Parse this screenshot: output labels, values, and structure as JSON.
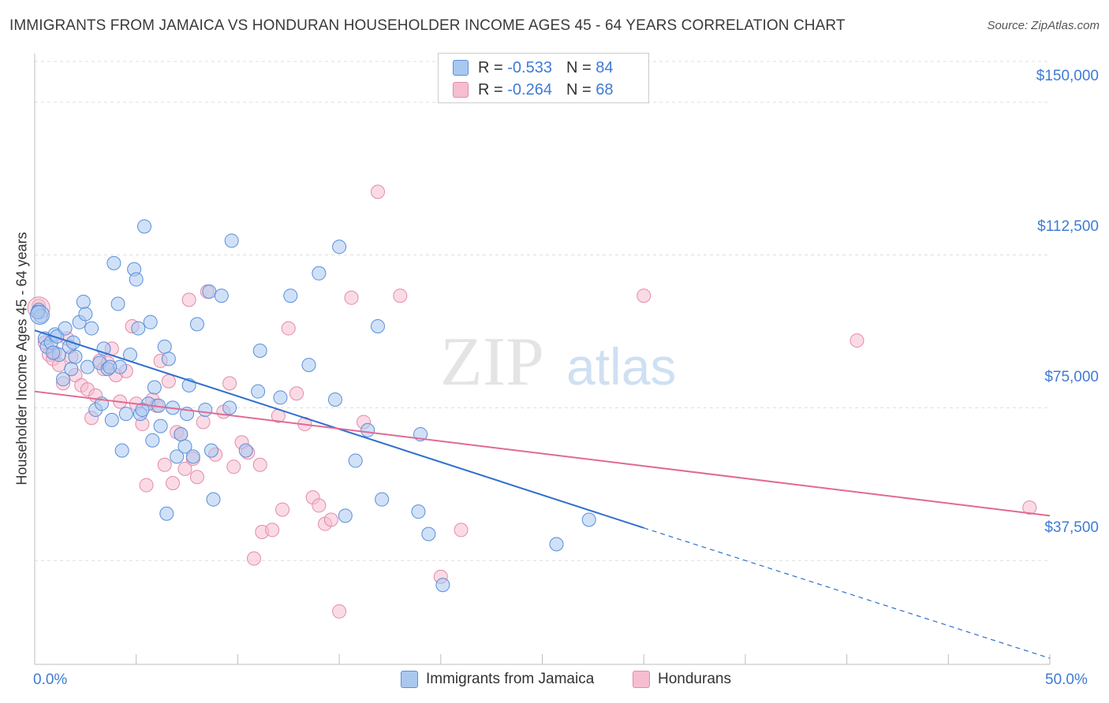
{
  "header": {
    "title": "IMMIGRANTS FROM JAMAICA VS HONDURAN HOUSEHOLDER INCOME AGES 45 - 64 YEARS CORRELATION CHART",
    "source": "Source: ZipAtlas.com"
  },
  "watermark": {
    "part1": "ZIP",
    "part2": "atlas"
  },
  "legend_top": {
    "r_label": "R =",
    "n_label": "N =",
    "rows": [
      {
        "r": "-0.533",
        "n": "84"
      },
      {
        "r": "-0.264",
        "n": "68"
      }
    ]
  },
  "colors": {
    "series1_fill": "#a9c8f0",
    "series1_stroke": "#5a8fd8",
    "series1_line": "#2f6fce",
    "series2_fill": "#f6bdd0",
    "series2_stroke": "#e48aaa",
    "series2_line": "#e06a94",
    "tick_text": "#3e7bd6",
    "grid": "#dedede"
  },
  "chart_data": {
    "type": "scatter",
    "title": "IMMIGRANTS FROM JAMAICA VS HONDURAN HOUSEHOLDER INCOME AGES 45 - 64 YEARS CORRELATION CHART",
    "xlabel": "",
    "ylabel": "Householder Income Ages 45 - 64 years",
    "xlim": [
      0,
      50
    ],
    "ylim": [
      12000,
      160000
    ],
    "x_tick_labels": [
      "0.0%",
      "50.0%"
    ],
    "y_ticks": [
      37500,
      75000,
      112500,
      150000
    ],
    "y_tick_labels": [
      "$37,500",
      "$75,000",
      "$112,500",
      "$150,000"
    ],
    "grid": true,
    "legend_placement": "bottom-center",
    "series": [
      {
        "name": "Immigrants from Jamaica",
        "r": -0.533,
        "n": 84,
        "trend": {
          "x0": 0,
          "y0": 94000,
          "x1": 30,
          "y1": 45500,
          "dash_to_x": 50,
          "dash_to_y": 13500
        },
        "points": [
          [
            0.2,
            99000
          ],
          [
            0.3,
            97500
          ],
          [
            0.5,
            92000
          ],
          [
            0.6,
            90000
          ],
          [
            0.8,
            91000
          ],
          [
            1.0,
            93000
          ],
          [
            1.1,
            92500
          ],
          [
            1.2,
            88000
          ],
          [
            1.4,
            82000
          ],
          [
            1.5,
            94500
          ],
          [
            1.7,
            90000
          ],
          [
            1.8,
            84500
          ],
          [
            2.0,
            87500
          ],
          [
            2.2,
            96000
          ],
          [
            2.4,
            101000
          ],
          [
            2.5,
            98000
          ],
          [
            2.6,
            85000
          ],
          [
            2.8,
            94500
          ],
          [
            3.0,
            74500
          ],
          [
            3.2,
            86000
          ],
          [
            3.3,
            76000
          ],
          [
            3.4,
            89500
          ],
          [
            3.6,
            84500
          ],
          [
            3.8,
            72000
          ],
          [
            3.9,
            110500
          ],
          [
            4.1,
            100500
          ],
          [
            4.2,
            85000
          ],
          [
            4.3,
            64500
          ],
          [
            4.5,
            73500
          ],
          [
            4.7,
            88000
          ],
          [
            4.9,
            109000
          ],
          [
            5.0,
            106500
          ],
          [
            5.1,
            94500
          ],
          [
            5.2,
            73500
          ],
          [
            5.4,
            119500
          ],
          [
            5.6,
            76000
          ],
          [
            5.7,
            96000
          ],
          [
            5.8,
            67000
          ],
          [
            5.9,
            80000
          ],
          [
            6.1,
            75500
          ],
          [
            6.2,
            70500
          ],
          [
            6.4,
            90000
          ],
          [
            6.5,
            49000
          ],
          [
            6.6,
            87000
          ],
          [
            6.8,
            75000
          ],
          [
            7.0,
            63000
          ],
          [
            7.2,
            68500
          ],
          [
            7.4,
            65500
          ],
          [
            7.5,
            73500
          ],
          [
            7.6,
            80500
          ],
          [
            7.8,
            63000
          ],
          [
            8.0,
            95500
          ],
          [
            8.4,
            74500
          ],
          [
            8.6,
            103500
          ],
          [
            8.7,
            64500
          ],
          [
            8.8,
            52500
          ],
          [
            9.2,
            102500
          ],
          [
            9.6,
            75000
          ],
          [
            9.7,
            116000
          ],
          [
            10.4,
            64500
          ],
          [
            11.0,
            79000
          ],
          [
            11.1,
            89000
          ],
          [
            12.1,
            77500
          ],
          [
            12.6,
            102500
          ],
          [
            13.5,
            85500
          ],
          [
            14.0,
            108000
          ],
          [
            14.8,
            77000
          ],
          [
            15.0,
            114500
          ],
          [
            15.3,
            48500
          ],
          [
            15.8,
            62000
          ],
          [
            16.4,
            69500
          ],
          [
            16.9,
            95000
          ],
          [
            17.1,
            52500
          ],
          [
            18.9,
            49500
          ],
          [
            19.0,
            68500
          ],
          [
            19.4,
            44000
          ],
          [
            20.1,
            31500
          ],
          [
            25.7,
            41500
          ],
          [
            27.3,
            47500
          ],
          [
            0.15,
            98500
          ],
          [
            0.9,
            88500
          ],
          [
            1.9,
            91000
          ],
          [
            3.7,
            85000
          ],
          [
            5.3,
            74500
          ]
        ]
      },
      {
        "name": "Hondurans",
        "r": -0.264,
        "n": 68,
        "trend": {
          "x0": 0,
          "y0": 79000,
          "x1": 50,
          "y1": 48500
        },
        "points": [
          [
            0.2,
            100000
          ],
          [
            0.5,
            91000
          ],
          [
            0.7,
            88000
          ],
          [
            0.9,
            87000
          ],
          [
            1.0,
            88500
          ],
          [
            1.2,
            85500
          ],
          [
            1.4,
            81000
          ],
          [
            1.6,
            92000
          ],
          [
            1.8,
            87500
          ],
          [
            2.0,
            83000
          ],
          [
            2.3,
            80500
          ],
          [
            2.6,
            79500
          ],
          [
            2.8,
            72500
          ],
          [
            3.0,
            78000
          ],
          [
            3.2,
            86500
          ],
          [
            3.4,
            84500
          ],
          [
            3.6,
            86000
          ],
          [
            3.8,
            89500
          ],
          [
            4.0,
            83000
          ],
          [
            4.2,
            76500
          ],
          [
            4.5,
            84000
          ],
          [
            4.8,
            95000
          ],
          [
            5.0,
            76000
          ],
          [
            5.3,
            71000
          ],
          [
            5.5,
            56000
          ],
          [
            5.8,
            77000
          ],
          [
            6.0,
            75500
          ],
          [
            6.2,
            86500
          ],
          [
            6.4,
            61000
          ],
          [
            6.6,
            81500
          ],
          [
            6.8,
            56500
          ],
          [
            7.0,
            69000
          ],
          [
            7.2,
            68500
          ],
          [
            7.4,
            60000
          ],
          [
            7.6,
            101500
          ],
          [
            7.8,
            62500
          ],
          [
            8.0,
            58000
          ],
          [
            8.3,
            71500
          ],
          [
            8.5,
            103500
          ],
          [
            8.9,
            63500
          ],
          [
            9.3,
            74000
          ],
          [
            9.6,
            81000
          ],
          [
            9.8,
            60500
          ],
          [
            10.2,
            66500
          ],
          [
            10.5,
            64000
          ],
          [
            10.8,
            38000
          ],
          [
            11.1,
            61000
          ],
          [
            11.2,
            44500
          ],
          [
            11.7,
            45000
          ],
          [
            12.0,
            73000
          ],
          [
            12.2,
            50000
          ],
          [
            12.5,
            94500
          ],
          [
            12.9,
            78500
          ],
          [
            13.3,
            71000
          ],
          [
            13.7,
            53000
          ],
          [
            14.0,
            51000
          ],
          [
            14.3,
            46500
          ],
          [
            14.6,
            47500
          ],
          [
            15.0,
            25000
          ],
          [
            15.6,
            102000
          ],
          [
            16.2,
            71500
          ],
          [
            16.9,
            128000
          ],
          [
            18.0,
            102500
          ],
          [
            20.0,
            33500
          ],
          [
            21.0,
            45000
          ],
          [
            30.0,
            102500
          ],
          [
            40.5,
            91500
          ],
          [
            49.0,
            50500
          ]
        ]
      }
    ]
  },
  "legend_bottom": {
    "items": [
      {
        "label": "Immigrants from Jamaica"
      },
      {
        "label": "Hondurans"
      }
    ]
  }
}
